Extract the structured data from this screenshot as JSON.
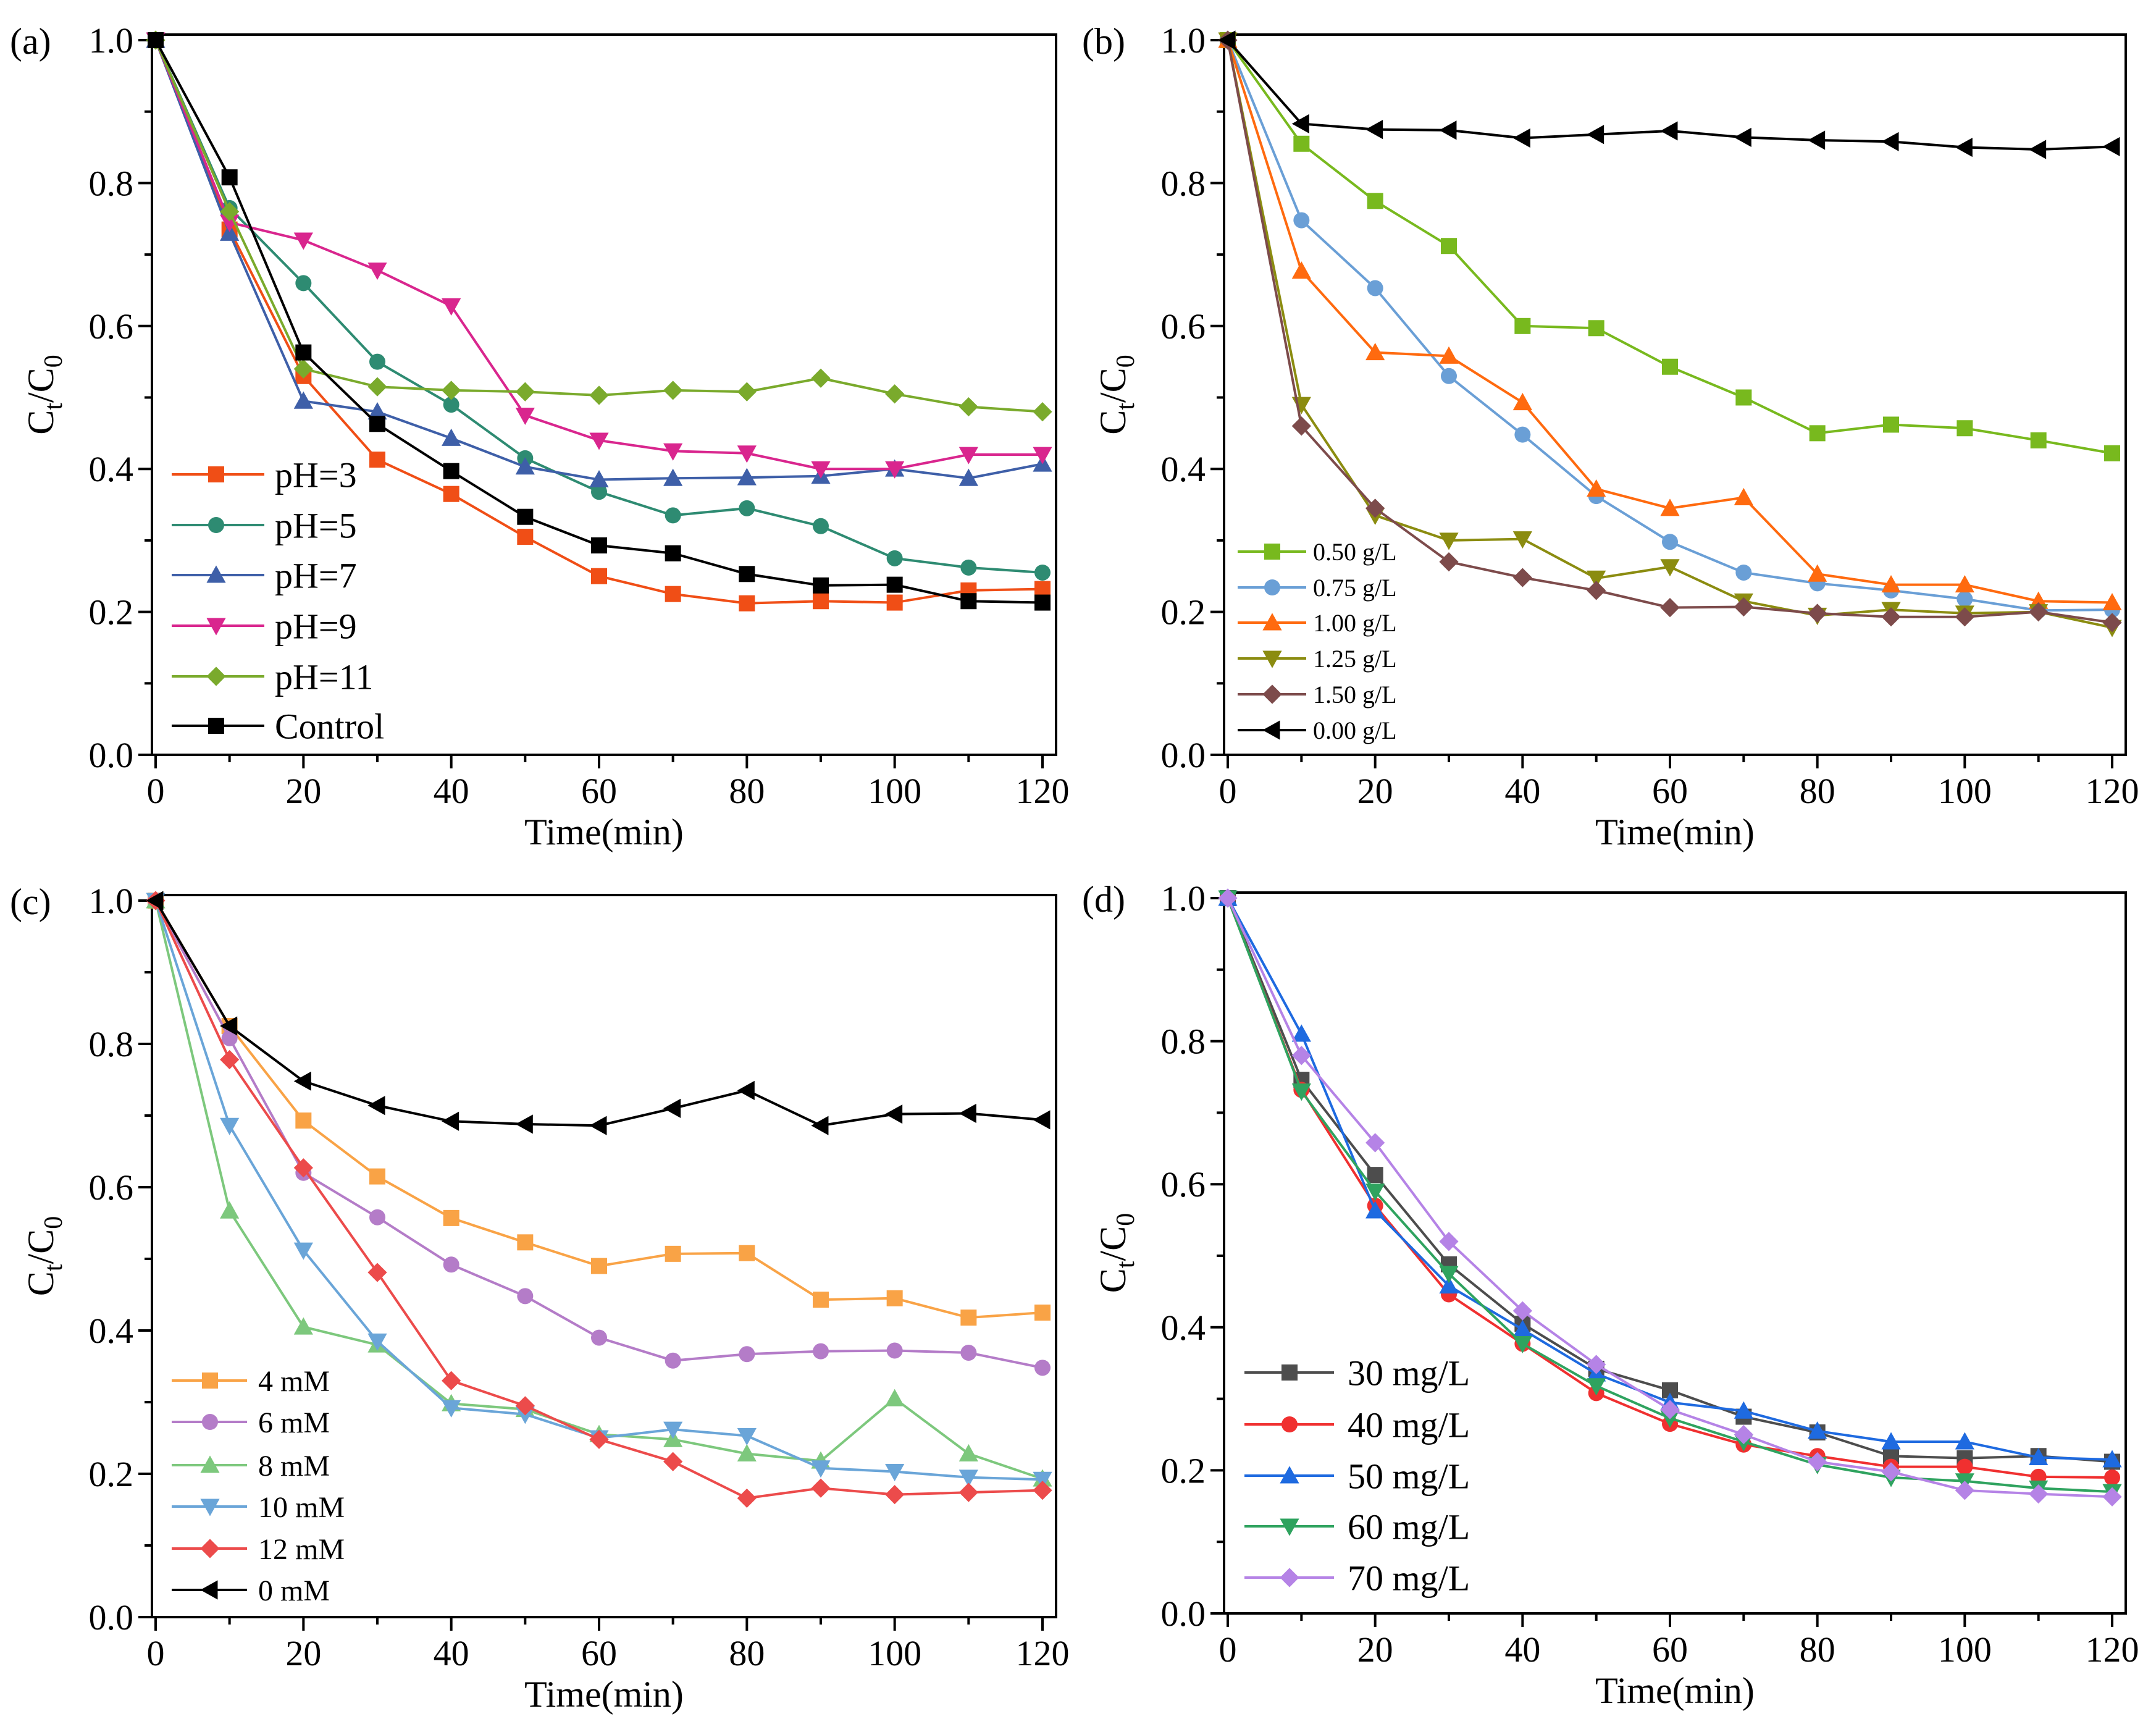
{
  "chart_data": [
    {
      "type": "line",
      "panel_label": "(a)",
      "xlabel": "Time(min)",
      "ylabel": {
        "c1": "C",
        "s1": "t",
        "c2": "/C",
        "s2": "0"
      },
      "xlim": [
        0,
        120
      ],
      "ylim": [
        0,
        1.0
      ],
      "grid": false,
      "legend_placement": "bottom-left",
      "xticks": [
        "0",
        "20",
        "40",
        "60",
        "80",
        "100",
        "120"
      ],
      "yticks": [
        "0.0",
        "0.2",
        "0.4",
        "0.6",
        "0.8",
        "1.0"
      ],
      "x": [
        0,
        10,
        20,
        30,
        40,
        50,
        60,
        70,
        80,
        90,
        100,
        110,
        120
      ],
      "series": [
        {
          "name": "pH=3",
          "color": "#f04e16",
          "marker": "square",
          "values": [
            1.0,
            0.735,
            0.53,
            0.413,
            0.365,
            0.305,
            0.25,
            0.225,
            0.212,
            0.215,
            0.213,
            0.23,
            0.232
          ]
        },
        {
          "name": "pH=5",
          "color": "#2e8b72",
          "marker": "circle",
          "values": [
            1.0,
            0.765,
            0.66,
            0.55,
            0.49,
            0.415,
            0.368,
            0.335,
            0.345,
            0.32,
            0.275,
            0.262,
            0.255
          ]
        },
        {
          "name": "pH=7",
          "color": "#3e5fa8",
          "marker": "triangle-up",
          "values": [
            1.0,
            0.73,
            0.495,
            0.48,
            0.443,
            0.403,
            0.385,
            0.387,
            0.388,
            0.39,
            0.4,
            0.387,
            0.407
          ]
        },
        {
          "name": "pH=9",
          "color": "#d9268e",
          "marker": "triangle-down",
          "values": [
            1.0,
            0.745,
            0.72,
            0.678,
            0.628,
            0.475,
            0.44,
            0.425,
            0.422,
            0.4,
            0.4,
            0.42,
            0.42
          ]
        },
        {
          "name": "pH=11",
          "color": "#7aaa2c",
          "marker": "diamond",
          "values": [
            1.0,
            0.76,
            0.54,
            0.515,
            0.51,
            0.508,
            0.503,
            0.51,
            0.508,
            0.527,
            0.505,
            0.487,
            0.48
          ]
        },
        {
          "name": "Control",
          "color": "#000000",
          "marker": "square",
          "values": [
            1.0,
            0.808,
            0.563,
            0.463,
            0.397,
            0.333,
            0.293,
            0.282,
            0.253,
            0.237,
            0.238,
            0.215,
            0.213
          ]
        }
      ]
    },
    {
      "type": "line",
      "panel_label": "(b)",
      "xlabel": "Time(min)",
      "ylabel": {
        "c1": "C",
        "s1": "t",
        "c2": "/C",
        "s2": "0"
      },
      "xlim": [
        0,
        120
      ],
      "ylim": [
        0,
        1.0
      ],
      "grid": false,
      "legend_placement": "bottom-left",
      "xticks": [
        "0",
        "20",
        "40",
        "60",
        "80",
        "100",
        "120"
      ],
      "yticks": [
        "0.0",
        "0.2",
        "0.4",
        "0.6",
        "0.8",
        "1.0"
      ],
      "x": [
        0,
        10,
        20,
        30,
        40,
        50,
        60,
        70,
        80,
        90,
        100,
        110,
        120
      ],
      "series": [
        {
          "name": "0.50 g/L",
          "color": "#78b91e",
          "marker": "square",
          "values": [
            1.0,
            0.855,
            0.775,
            0.712,
            0.6,
            0.597,
            0.543,
            0.5,
            0.45,
            0.462,
            0.457,
            0.44,
            0.422
          ]
        },
        {
          "name": "0.75 g/L",
          "color": "#6a9fd6",
          "marker": "circle",
          "values": [
            1.0,
            0.748,
            0.653,
            0.53,
            0.448,
            0.362,
            0.298,
            0.255,
            0.24,
            0.23,
            0.218,
            0.202,
            0.203
          ]
        },
        {
          "name": "1.00 g/L",
          "color": "#ff6a0f",
          "marker": "triangle-up",
          "values": [
            1.0,
            0.677,
            0.563,
            0.558,
            0.493,
            0.372,
            0.345,
            0.36,
            0.253,
            0.238,
            0.238,
            0.215,
            0.213
          ]
        },
        {
          "name": "1.25 g/L",
          "color": "#8b8c10",
          "marker": "triangle-down",
          "values": [
            1.0,
            0.49,
            0.335,
            0.3,
            0.302,
            0.247,
            0.263,
            0.215,
            0.195,
            0.203,
            0.198,
            0.2,
            0.178
          ]
        },
        {
          "name": "1.50 g/L",
          "color": "#7d4b4b",
          "marker": "diamond",
          "values": [
            1.0,
            0.46,
            0.345,
            0.27,
            0.248,
            0.23,
            0.206,
            0.207,
            0.198,
            0.193,
            0.193,
            0.2,
            0.185
          ]
        },
        {
          "name": "0.00 g/L",
          "color": "#000000",
          "marker": "triangle-left",
          "values": [
            1.0,
            0.883,
            0.875,
            0.874,
            0.863,
            0.868,
            0.873,
            0.864,
            0.86,
            0.858,
            0.85,
            0.847,
            0.851
          ]
        }
      ]
    },
    {
      "type": "line",
      "panel_label": "(c)",
      "xlabel": "Time(min)",
      "ylabel": {
        "c1": "C",
        "s1": "t",
        "c2": "/C",
        "s2": "0"
      },
      "xlim": [
        0,
        120
      ],
      "ylim": [
        0,
        1.0
      ],
      "grid": false,
      "legend_placement": "bottom-left",
      "xticks": [
        "0",
        "20",
        "40",
        "60",
        "80",
        "100",
        "120"
      ],
      "yticks": [
        "0.0",
        "0.2",
        "0.4",
        "0.6",
        "0.8",
        "1.0"
      ],
      "x": [
        0,
        10,
        20,
        30,
        40,
        50,
        60,
        70,
        80,
        90,
        100,
        110,
        120
      ],
      "series": [
        {
          "name": "4   mM",
          "color": "#f9a346",
          "marker": "square",
          "values": [
            1.0,
            0.825,
            0.693,
            0.615,
            0.557,
            0.523,
            0.49,
            0.507,
            0.508,
            0.443,
            0.445,
            0.418,
            0.425
          ]
        },
        {
          "name": "6   mM",
          "color": "#b47cc8",
          "marker": "circle",
          "values": [
            1.0,
            0.808,
            0.62,
            0.558,
            0.492,
            0.448,
            0.39,
            0.358,
            0.367,
            0.371,
            0.372,
            0.369,
            0.348
          ]
        },
        {
          "name": "8   mM",
          "color": "#7dc87d",
          "marker": "triangle-up",
          "values": [
            1.0,
            0.567,
            0.405,
            0.38,
            0.298,
            0.29,
            0.255,
            0.248,
            0.228,
            0.218,
            0.305,
            0.228,
            0.193
          ]
        },
        {
          "name": "10 mM",
          "color": "#6aa5d8",
          "marker": "triangle-down",
          "values": [
            1.0,
            0.686,
            0.512,
            0.385,
            0.292,
            0.283,
            0.25,
            0.262,
            0.253,
            0.208,
            0.203,
            0.195,
            0.192
          ]
        },
        {
          "name": "12 mM",
          "color": "#ec4b4b",
          "marker": "diamond",
          "values": [
            1.0,
            0.778,
            0.627,
            0.481,
            0.33,
            0.295,
            0.248,
            0.217,
            0.166,
            0.18,
            0.171,
            0.174,
            0.177
          ]
        },
        {
          "name": "0   mM",
          "color": "#000000",
          "marker": "triangle-left",
          "values": [
            1.0,
            0.825,
            0.748,
            0.714,
            0.692,
            0.688,
            0.686,
            0.71,
            0.735,
            0.686,
            0.702,
            0.703,
            0.694
          ]
        }
      ]
    },
    {
      "type": "line",
      "panel_label": "(d)",
      "xlabel": "Time(min)",
      "ylabel": {
        "c1": "C",
        "s1": "t",
        "c2": "/C",
        "s2": "0"
      },
      "xlim": [
        0,
        120
      ],
      "ylim": [
        0,
        1.0
      ],
      "grid": false,
      "legend_placement": "bottom-left",
      "xticks": [
        "0",
        "20",
        "40",
        "60",
        "80",
        "100",
        "120"
      ],
      "yticks": [
        "0.0",
        "0.2",
        "0.4",
        "0.6",
        "0.8",
        "1.0"
      ],
      "x": [
        0,
        10,
        20,
        30,
        40,
        50,
        60,
        70,
        80,
        90,
        100,
        110,
        120
      ],
      "series": [
        {
          "name": "30 mg/L",
          "color": "#4d4d4d",
          "marker": "square",
          "values": [
            1.0,
            0.746,
            0.613,
            0.488,
            0.405,
            0.342,
            0.312,
            0.275,
            0.253,
            0.22,
            0.217,
            0.22,
            0.212
          ]
        },
        {
          "name": "40 mg/L",
          "color": "#f03030",
          "marker": "circle",
          "values": [
            1.0,
            0.732,
            0.57,
            0.446,
            0.377,
            0.308,
            0.265,
            0.236,
            0.22,
            0.205,
            0.205,
            0.191,
            0.19
          ]
        },
        {
          "name": "50 mg/L",
          "color": "#1e6ae0",
          "marker": "triangle-up",
          "values": [
            1.0,
            0.81,
            0.563,
            0.458,
            0.397,
            0.335,
            0.295,
            0.283,
            0.255,
            0.24,
            0.24,
            0.218,
            0.215
          ]
        },
        {
          "name": "60 mg/L",
          "color": "#2fa35f",
          "marker": "triangle-down",
          "values": [
            1.0,
            0.73,
            0.59,
            0.475,
            0.377,
            0.318,
            0.273,
            0.24,
            0.208,
            0.19,
            0.185,
            0.175,
            0.17
          ]
        },
        {
          "name": "70 mg/L",
          "color": "#b583e6",
          "marker": "diamond",
          "values": [
            1.0,
            0.78,
            0.658,
            0.52,
            0.423,
            0.348,
            0.285,
            0.25,
            0.212,
            0.198,
            0.172,
            0.167,
            0.163
          ]
        }
      ]
    }
  ]
}
